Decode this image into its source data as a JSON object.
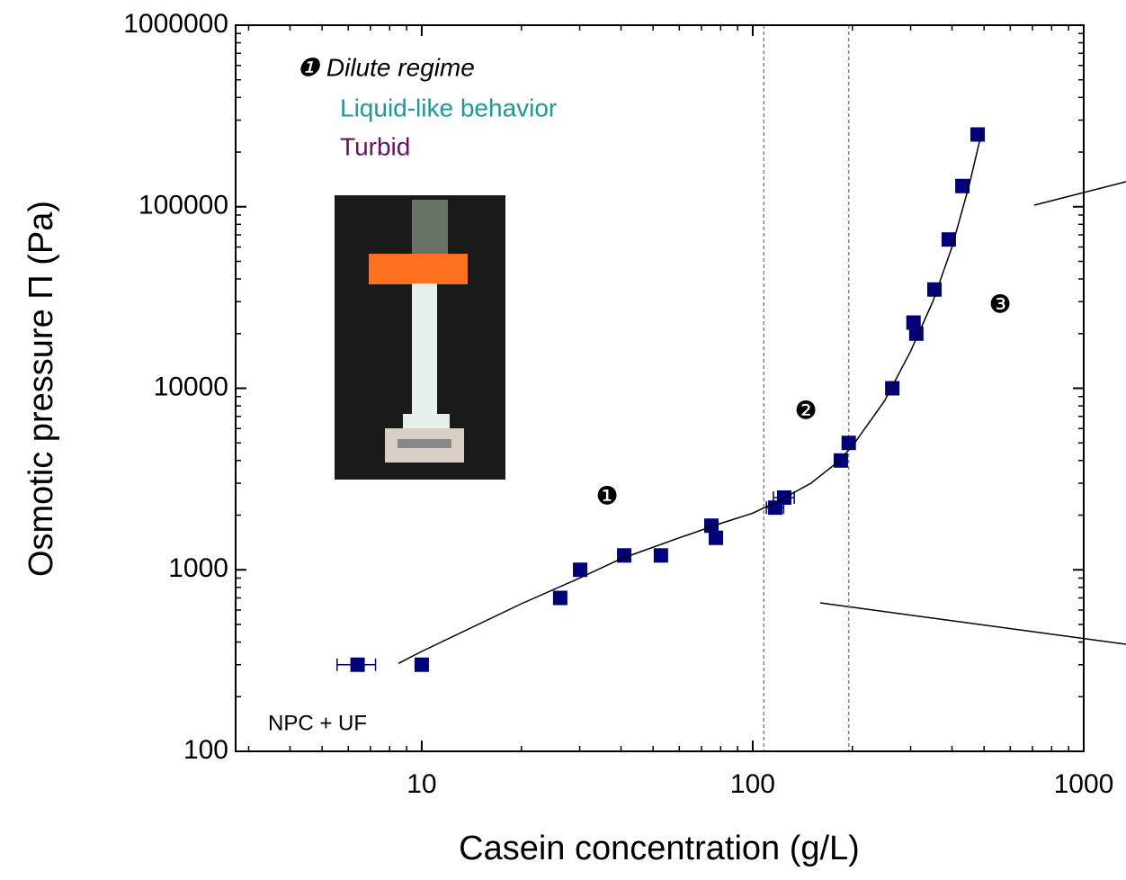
{
  "chart_data": {
    "type": "scatter",
    "x_label": "Casein concentration (g/L)",
    "y_label": "Osmotic pressure Π (Pa)",
    "xscale": "log",
    "yscale": "log",
    "xlim": [
      2.74,
      1000
    ],
    "ylim": [
      100,
      1000000
    ],
    "xticks": [
      10,
      100,
      1000
    ],
    "yticks": [
      100,
      1000,
      10000,
      100000,
      1000000
    ],
    "series": [
      {
        "color": "#00007f",
        "x": [
          6.4,
          10,
          26.2,
          30.1,
          40.9,
          52.8,
          75,
          77.4,
          117,
          124.5,
          184.6,
          195,
          264,
          306,
          312,
          354,
          391,
          430,
          478
        ],
        "values": [
          300,
          300,
          700,
          1000,
          1200,
          1200,
          1750,
          1500,
          2200,
          2500,
          4000,
          5000,
          10000,
          23000,
          20000,
          35000,
          66000,
          130000,
          250000
        ],
        "x_errors": [
          0.85,
          null,
          null,
          null,
          null,
          null,
          null,
          null,
          7,
          9,
          null,
          null,
          null,
          null,
          null,
          null,
          null,
          null,
          null
        ]
      },
      {
        "type": "line",
        "color": "#000000",
        "x": [
          8.5,
          10,
          20,
          30,
          40,
          60,
          80,
          100,
          120,
          150,
          180,
          200,
          250,
          300,
          350,
          400,
          450,
          490
        ],
        "values": [
          305,
          355,
          650,
          900,
          1150,
          1500,
          1800,
          2050,
          2400,
          3000,
          3900,
          4800,
          8500,
          16000,
          30000,
          60000,
          130000,
          250000
        ]
      }
    ],
    "vlines": [
      108,
      195
    ],
    "annotations": {
      "regime_title": "❶ Dilute regime",
      "behavior": "Liquid-like behavior",
      "aspect": "Turbid",
      "region1": "❶",
      "region2": "❷",
      "region3": "❸",
      "method": "NPC + UF"
    }
  }
}
